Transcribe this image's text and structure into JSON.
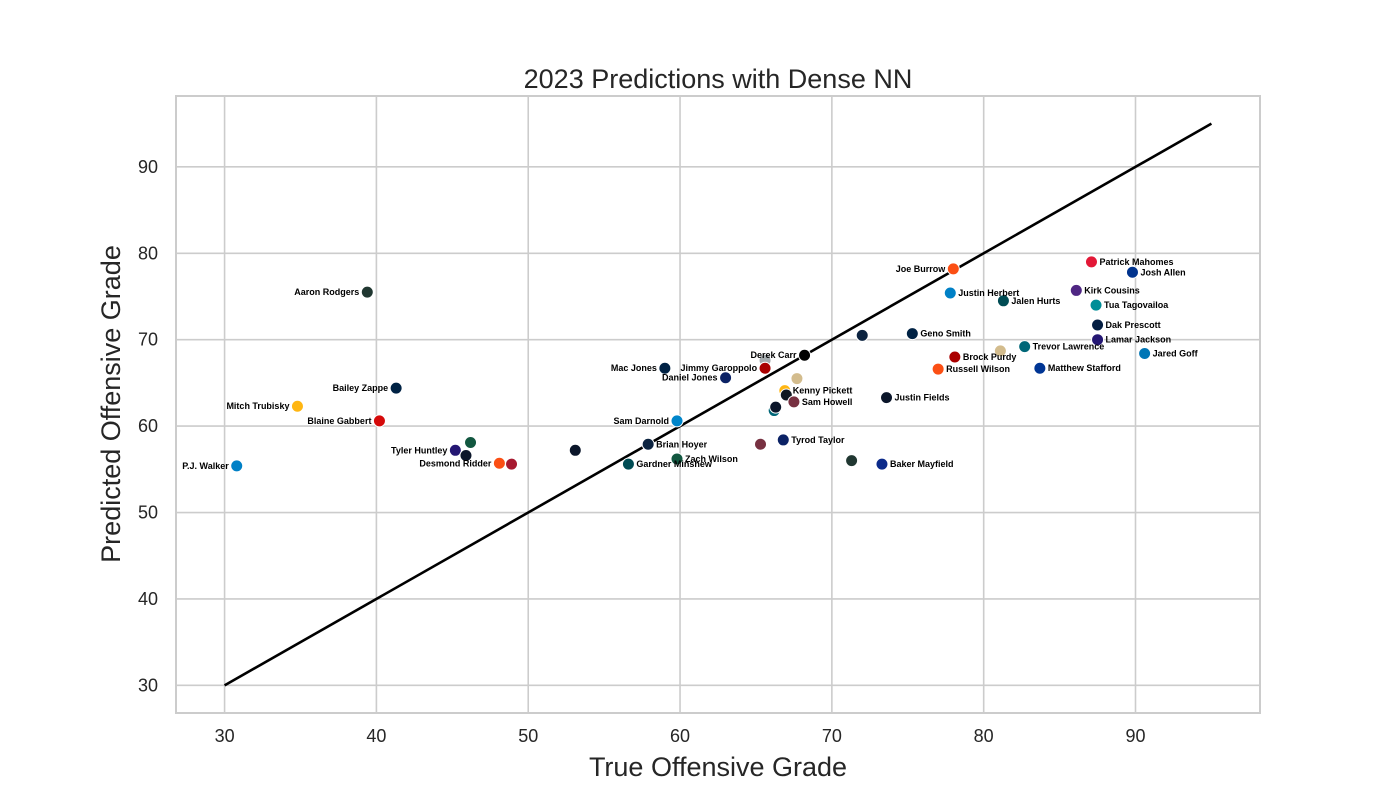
{
  "chart_data": {
    "type": "scatter",
    "title": "2023 Predictions with Dense NN",
    "xlabel": "True Offensive Grade",
    "ylabel": "Predicted Offensive Grade",
    "xlim": [
      26.8,
      98.2
    ],
    "ylim": [
      26.8,
      98.2
    ],
    "xticks": [
      "30",
      "40",
      "50",
      "60",
      "70",
      "80",
      "90"
    ],
    "yticks": [
      "30",
      "40",
      "50",
      "60",
      "70",
      "80",
      "90"
    ],
    "xtick_values": [
      30,
      40,
      50,
      60,
      70,
      80,
      90
    ],
    "ytick_values": [
      30,
      40,
      50,
      60,
      70,
      80,
      90
    ],
    "grid": true,
    "reference_line": {
      "x": [
        30,
        95
      ],
      "y": [
        30,
        95
      ],
      "color": "#000000"
    },
    "points": [
      {
        "x": 30.8,
        "y": 55.4,
        "color": "#0080C6",
        "label": "P.J. Walker",
        "anchor": "end"
      },
      {
        "x": 34.8,
        "y": 62.3,
        "color": "#FFB612",
        "label": "Mitch Trubisky",
        "anchor": "end"
      },
      {
        "x": 39.4,
        "y": 75.5,
        "color": "#203731",
        "label": "Aaron Rodgers",
        "anchor": "end"
      },
      {
        "x": 40.2,
        "y": 60.6,
        "color": "#D50A0A",
        "label": "Blaine Gabbert",
        "anchor": "end"
      },
      {
        "x": 41.3,
        "y": 64.4,
        "color": "#002244",
        "label": "Bailey Zappe",
        "anchor": "end"
      },
      {
        "x": 45.2,
        "y": 57.2,
        "color": "#241773",
        "label": "Tyler Huntley",
        "anchor": "end"
      },
      {
        "x": 45.9,
        "y": 56.6,
        "color": "#0B162A",
        "label": "",
        "anchor": "start"
      },
      {
        "x": 46.2,
        "y": 58.1,
        "color": "#125740",
        "label": "",
        "anchor": "start"
      },
      {
        "x": 48.1,
        "y": 55.7,
        "color": "#FB4F14",
        "label": "Desmond Ridder",
        "anchor": "end"
      },
      {
        "x": 48.9,
        "y": 55.6,
        "color": "#A71930",
        "label": "",
        "anchor": "start"
      },
      {
        "x": 53.1,
        "y": 57.2,
        "color": "#0B162A",
        "label": "",
        "anchor": "start"
      },
      {
        "x": 56.6,
        "y": 55.6,
        "color": "#004C54",
        "label": "Gardner Minshew",
        "anchor": "start"
      },
      {
        "x": 57.9,
        "y": 57.9,
        "color": "#0C2340",
        "label": "Brian Hoyer",
        "anchor": "start"
      },
      {
        "x": 59.0,
        "y": 66.7,
        "color": "#002244",
        "label": "Mac Jones",
        "anchor": "end"
      },
      {
        "x": 59.8,
        "y": 60.6,
        "color": "#0085CA",
        "label": "Sam Darnold",
        "anchor": "end"
      },
      {
        "x": 59.8,
        "y": 56.2,
        "color": "#125740",
        "label": "Zach Wilson",
        "anchor": "start"
      },
      {
        "x": 63.0,
        "y": 65.6,
        "color": "#0B2265",
        "label": "Daniel Jones",
        "anchor": "end"
      },
      {
        "x": 65.3,
        "y": 57.9,
        "color": "#773141",
        "label": "",
        "anchor": "start"
      },
      {
        "x": 65.6,
        "y": 67.6,
        "color": "#A5ACAF",
        "label": "",
        "anchor": "start"
      },
      {
        "x": 65.6,
        "y": 66.7,
        "color": "#AA0000",
        "label": "Jimmy Garoppolo",
        "anchor": "end"
      },
      {
        "x": 66.2,
        "y": 61.8,
        "color": "#006778",
        "label": "",
        "anchor": "start"
      },
      {
        "x": 66.3,
        "y": 62.2,
        "color": "#0B162A",
        "label": "",
        "anchor": "start"
      },
      {
        "x": 66.8,
        "y": 58.4,
        "color": "#0B2265",
        "label": "Tyrod Taylor",
        "anchor": "start"
      },
      {
        "x": 66.9,
        "y": 64.1,
        "color": "#FFB612",
        "label": "Kenny Pickett",
        "anchor": "start"
      },
      {
        "x": 67.0,
        "y": 63.6,
        "color": "#101820",
        "label": "",
        "anchor": "start"
      },
      {
        "x": 67.5,
        "y": 62.8,
        "color": "#773141",
        "label": "Sam Howell",
        "anchor": "start"
      },
      {
        "x": 67.7,
        "y": 65.5,
        "color": "#D3BC8D",
        "label": "",
        "anchor": "start"
      },
      {
        "x": 68.2,
        "y": 68.2,
        "color": "#000000",
        "label": "Derek Carr",
        "anchor": "end"
      },
      {
        "x": 71.3,
        "y": 56.0,
        "color": "#203731",
        "label": "",
        "anchor": "start"
      },
      {
        "x": 72.0,
        "y": 70.5,
        "color": "#0C2340",
        "label": "",
        "anchor": "start"
      },
      {
        "x": 73.3,
        "y": 55.6,
        "color": "#0C2A8A",
        "label": "Baker Mayfield",
        "anchor": "start"
      },
      {
        "x": 73.6,
        "y": 63.3,
        "color": "#0B162A",
        "label": "Justin Fields",
        "anchor": "start"
      },
      {
        "x": 75.3,
        "y": 70.7,
        "color": "#002244",
        "label": "Geno Smith",
        "anchor": "start"
      },
      {
        "x": 77.0,
        "y": 66.6,
        "color": "#FB4F14",
        "label": "Russell Wilson",
        "anchor": "start"
      },
      {
        "x": 77.8,
        "y": 75.4,
        "color": "#0080C6",
        "label": "Justin Herbert",
        "anchor": "start"
      },
      {
        "x": 78.0,
        "y": 78.2,
        "color": "#FB4F14",
        "label": "Joe Burrow",
        "anchor": "end"
      },
      {
        "x": 78.1,
        "y": 68.0,
        "color": "#AA0000",
        "label": "Brock Purdy",
        "anchor": "start"
      },
      {
        "x": 81.1,
        "y": 68.7,
        "color": "#D3BC8D",
        "label": "",
        "anchor": "start"
      },
      {
        "x": 81.3,
        "y": 74.5,
        "color": "#004C54",
        "label": "Jalen Hurts",
        "anchor": "start"
      },
      {
        "x": 82.7,
        "y": 69.2,
        "color": "#006778",
        "label": "Trevor Lawrence",
        "anchor": "start"
      },
      {
        "x": 83.7,
        "y": 66.7,
        "color": "#003594",
        "label": "Matthew Stafford",
        "anchor": "start"
      },
      {
        "x": 86.1,
        "y": 75.7,
        "color": "#4F2683",
        "label": "Kirk Cousins",
        "anchor": "start"
      },
      {
        "x": 87.1,
        "y": 79.0,
        "color": "#E31837",
        "label": "Patrick Mahomes",
        "anchor": "start"
      },
      {
        "x": 87.4,
        "y": 74.0,
        "color": "#008E97",
        "label": "Tua Tagovailoa",
        "anchor": "start"
      },
      {
        "x": 87.5,
        "y": 71.7,
        "color": "#041E42",
        "label": "Dak Prescott",
        "anchor": "start"
      },
      {
        "x": 87.5,
        "y": 70.0,
        "color": "#241773",
        "label": "Lamar Jackson",
        "anchor": "start"
      },
      {
        "x": 89.8,
        "y": 77.8,
        "color": "#00338D",
        "label": "Josh Allen",
        "anchor": "start"
      },
      {
        "x": 90.6,
        "y": 68.4,
        "color": "#0076B6",
        "label": "Jared Goff",
        "anchor": "start"
      }
    ]
  }
}
